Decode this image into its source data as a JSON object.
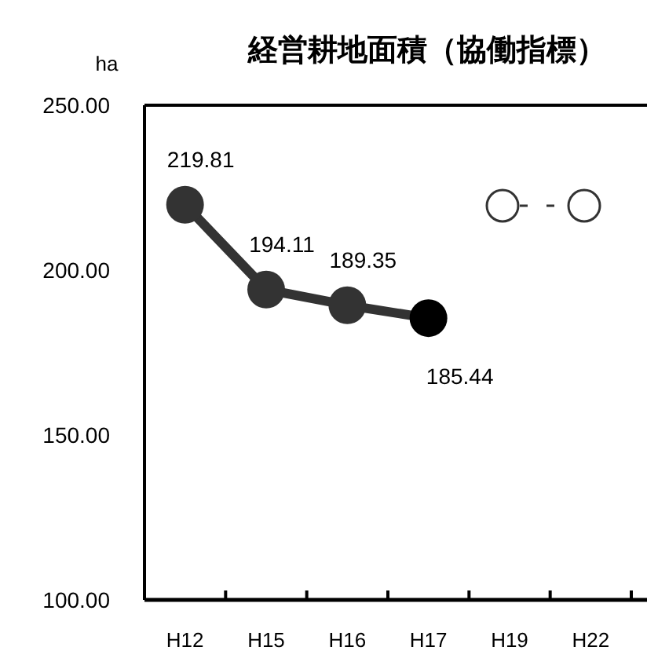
{
  "chart_data": {
    "type": "line",
    "title": "経営耕地面積（協働指標）",
    "ylabel": "ha",
    "categories": [
      "H12",
      "H15",
      "H16",
      "H17",
      "H19",
      "H22"
    ],
    "series": [
      {
        "color": "#333333",
        "colors": [
          "#333333",
          "#333333",
          "#333333",
          "#000000",
          null,
          null
        ],
        "values": [
          219.81,
          194.11,
          189.35,
          185.44,
          null,
          null
        ]
      }
    ],
    "ylim": [
      100,
      250
    ],
    "yticks": [
      {
        "value": 100,
        "label": "100.00"
      },
      {
        "value": 150,
        "label": "150.00"
      },
      {
        "value": 200,
        "label": "200.00"
      },
      {
        "value": 250,
        "label": "250.00"
      }
    ],
    "marker": "circle",
    "line_style": "solid",
    "grid": false,
    "data_labels": true
  }
}
